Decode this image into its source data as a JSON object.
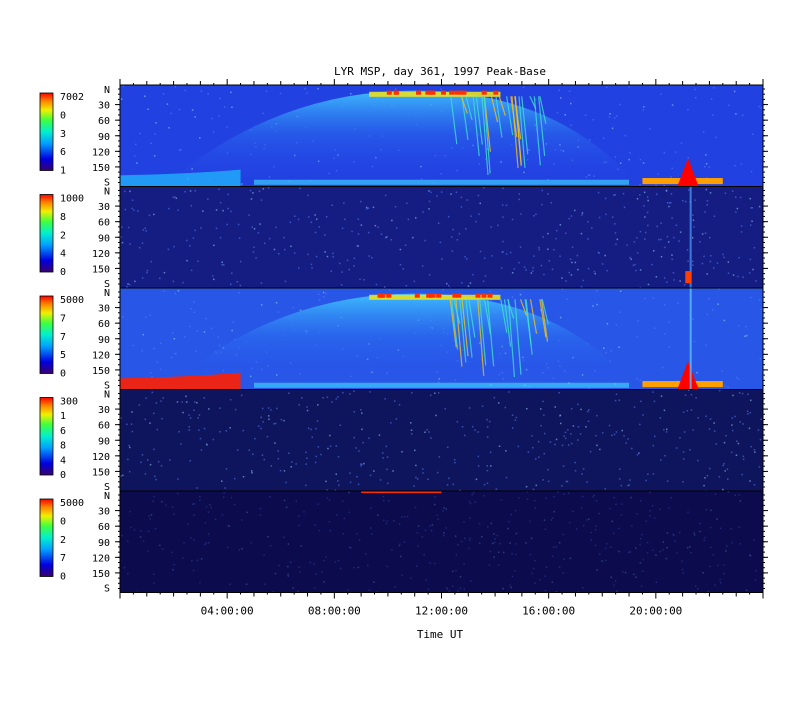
{
  "chart_data": {
    "type": "heatmap",
    "title": "LYR MSP, day 361, 1997 Peak-Base",
    "xlabel": "Time UT",
    "x_ticks": [
      "04:00:00",
      "08:00:00",
      "12:00:00",
      "16:00:00",
      "20:00:00"
    ],
    "x_tick_hours": [
      4,
      8,
      12,
      16,
      20
    ],
    "x_range_hours": [
      0,
      24
    ],
    "y_axis": {
      "top_label": "N",
      "bottom_label": "S",
      "ticks": [
        30,
        60,
        90,
        120,
        150
      ],
      "range": [
        0,
        180
      ]
    },
    "panels": [
      {
        "colorbar_labels": [
          "7002",
          "0",
          "3",
          "6",
          "1"
        ],
        "dominant": "#2a50ee",
        "background": "#1a2fd0"
      },
      {
        "colorbar_labels": [
          "1000",
          "8",
          "2",
          "4",
          "0"
        ],
        "dominant": "#18208a",
        "background": "#141a78"
      },
      {
        "colorbar_labels": [
          "5000",
          "7",
          "7",
          "5",
          "0"
        ],
        "dominant": "#2e66ee",
        "background": "#2244dd"
      },
      {
        "colorbar_labels": [
          "300",
          "1",
          "6",
          "8",
          "4",
          "0"
        ],
        "dominant": "#101660",
        "background": "#0e1458"
      },
      {
        "colorbar_labels": [
          "5000",
          "0",
          "2",
          "7",
          "0"
        ],
        "dominant": "#0c0c50",
        "background": "#0b0b4a"
      }
    ],
    "grid": false,
    "legend": "colorbars-left",
    "colors": {
      "colormap": [
        "#3a0070",
        "#0000e0",
        "#00a0ff",
        "#00f0d0",
        "#40ff40",
        "#f0f000",
        "#ff8000",
        "#ff0000"
      ]
    }
  }
}
